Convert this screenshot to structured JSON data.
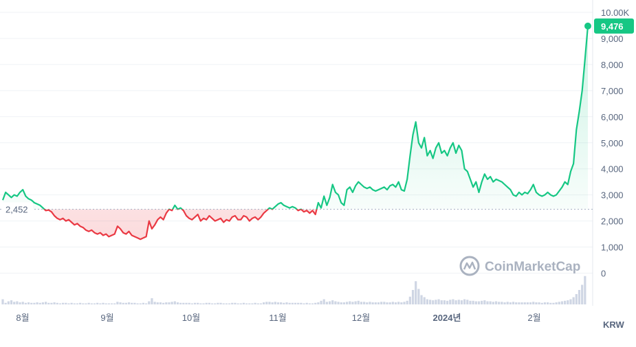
{
  "chart_data": {
    "type": "line",
    "title": "",
    "xlabel": "",
    "ylabel": "",
    "currency": "KRW",
    "current_price_label": "9,476",
    "current_price": 9476,
    "baseline_label": "2,452",
    "baseline": 2452,
    "ylim": [
      0,
      10000
    ],
    "y_ticks": [
      "0",
      "1,000",
      "2,000",
      "3,000",
      "4,000",
      "5,000",
      "6,000",
      "7,000",
      "8,000",
      "9,000",
      "10.00K"
    ],
    "x_ticks": [
      "8월",
      "9월",
      "10월",
      "11월",
      "12월",
      "2024년",
      "2월"
    ],
    "watermark": "CoinMarketCap",
    "colors": {
      "up": "#16c784",
      "down": "#ea3943",
      "grid": "#eff2f5",
      "axis_text": "#58667e"
    },
    "grid": true,
    "series": [
      {
        "values": [
          2800,
          3100,
          3000,
          2900,
          3000,
          2950,
          3100,
          3200,
          2950,
          2850,
          2800,
          2700,
          2650,
          2600,
          2500,
          2400,
          2420,
          2350,
          2200,
          2100,
          2050,
          2100,
          2000,
          2050,
          1950,
          1850,
          1900,
          1800,
          1750,
          1650,
          1600,
          1650,
          1550,
          1500,
          1550,
          1450,
          1500,
          1400,
          1450,
          1500,
          1800,
          1700,
          1550,
          1500,
          1600,
          1450,
          1400,
          1350,
          1300,
          1350,
          1400,
          2000,
          1700,
          1850,
          2050,
          2150,
          2050,
          2300,
          2450,
          2400,
          2600,
          2450,
          2500,
          2400,
          2200,
          2100,
          2050,
          2150,
          2250,
          2000,
          2100,
          2050,
          2200,
          2100,
          2000,
          2050,
          2100,
          1950,
          2050,
          2000,
          2150,
          2200,
          2050,
          2050,
          2200,
          2150,
          2000,
          2100,
          2150,
          2050,
          2150,
          2300,
          2400,
          2500,
          2450,
          2550,
          2650,
          2700,
          2600,
          2550,
          2500,
          2550,
          2500,
          2400,
          2450,
          2350,
          2400,
          2300,
          2400,
          2250,
          2700,
          2500,
          2950,
          2600,
          2900,
          3400,
          3100,
          3000,
          2700,
          2600,
          3200,
          3300,
          3100,
          3350,
          3500,
          3400,
          3300,
          3250,
          3300,
          3200,
          3150,
          3200,
          3250,
          3300,
          3200,
          3350,
          3400,
          3300,
          3500,
          3200,
          3150,
          3600,
          4500,
          5300,
          5800,
          5000,
          4800,
          5200,
          4500,
          4700,
          4400,
          4800,
          5000,
          4600,
          4700,
          4500,
          4800,
          5000,
          4600,
          4900,
          4700,
          4000,
          3900,
          3600,
          3300,
          3500,
          3100,
          3500,
          3800,
          3600,
          3700,
          3500,
          3600,
          3550,
          3500,
          3400,
          3300,
          3200,
          3000,
          2950,
          3100,
          3000,
          3100,
          3050,
          3200,
          3400,
          3100,
          3000,
          2950,
          3000,
          3100,
          3000,
          2950,
          3000,
          3150,
          3300,
          3500,
          3400,
          3900,
          4200,
          5500,
          6200,
          7000,
          8200,
          9476
        ]
      }
    ],
    "volume": [
      0.1,
      0.03,
      0.06,
      0.08,
      0.05,
      0.06,
      0.04,
      0.05,
      0.03,
      0.04,
      0.03,
      0.03,
      0.04,
      0.03,
      0.04,
      0.05,
      0.03,
      0.03,
      0.04,
      0.03,
      0.02,
      0.03,
      0.03,
      0.02,
      0.03,
      0.02,
      0.02,
      0.03,
      0.02,
      0.02,
      0.03,
      0.02,
      0.02,
      0.03,
      0.02,
      0.03,
      0.02,
      0.02,
      0.02,
      0.02,
      0.05,
      0.04,
      0.03,
      0.03,
      0.04,
      0.03,
      0.03,
      0.02,
      0.02,
      0.03,
      0.02,
      0.06,
      0.12,
      0.05,
      0.04,
      0.04,
      0.03,
      0.04,
      0.04,
      0.05,
      0.06,
      0.04,
      0.03,
      0.03,
      0.03,
      0.03,
      0.02,
      0.03,
      0.03,
      0.02,
      0.02,
      0.03,
      0.03,
      0.02,
      0.02,
      0.03,
      0.03,
      0.02,
      0.02,
      0.02,
      0.03,
      0.03,
      0.02,
      0.02,
      0.03,
      0.02,
      0.02,
      0.02,
      0.03,
      0.02,
      0.02,
      0.04,
      0.05,
      0.05,
      0.04,
      0.05,
      0.04,
      0.04,
      0.03,
      0.04,
      0.03,
      0.03,
      0.03,
      0.03,
      0.03,
      0.02,
      0.03,
      0.02,
      0.02,
      0.03,
      0.04,
      0.07,
      0.1,
      0.05,
      0.06,
      0.08,
      0.06,
      0.05,
      0.04,
      0.04,
      0.05,
      0.06,
      0.05,
      0.06,
      0.07,
      0.05,
      0.05,
      0.04,
      0.05,
      0.04,
      0.04,
      0.04,
      0.05,
      0.05,
      0.04,
      0.04,
      0.05,
      0.04,
      0.05,
      0.04,
      0.05,
      0.07,
      0.15,
      0.28,
      0.45,
      0.3,
      0.18,
      0.14,
      0.1,
      0.09,
      0.08,
      0.09,
      0.1,
      0.08,
      0.08,
      0.07,
      0.09,
      0.1,
      0.08,
      0.09,
      0.08,
      0.1,
      0.09,
      0.07,
      0.07,
      0.06,
      0.06,
      0.07,
      0.08,
      0.06,
      0.06,
      0.05,
      0.06,
      0.05,
      0.05,
      0.04,
      0.05,
      0.04,
      0.05,
      0.04,
      0.04,
      0.04,
      0.04,
      0.04,
      0.04,
      0.05,
      0.04,
      0.04,
      0.03,
      0.04,
      0.04,
      0.03,
      0.03,
      0.04,
      0.05,
      0.06,
      0.07,
      0.08,
      0.1,
      0.14,
      0.2,
      0.28,
      0.38,
      0.55
    ]
  }
}
